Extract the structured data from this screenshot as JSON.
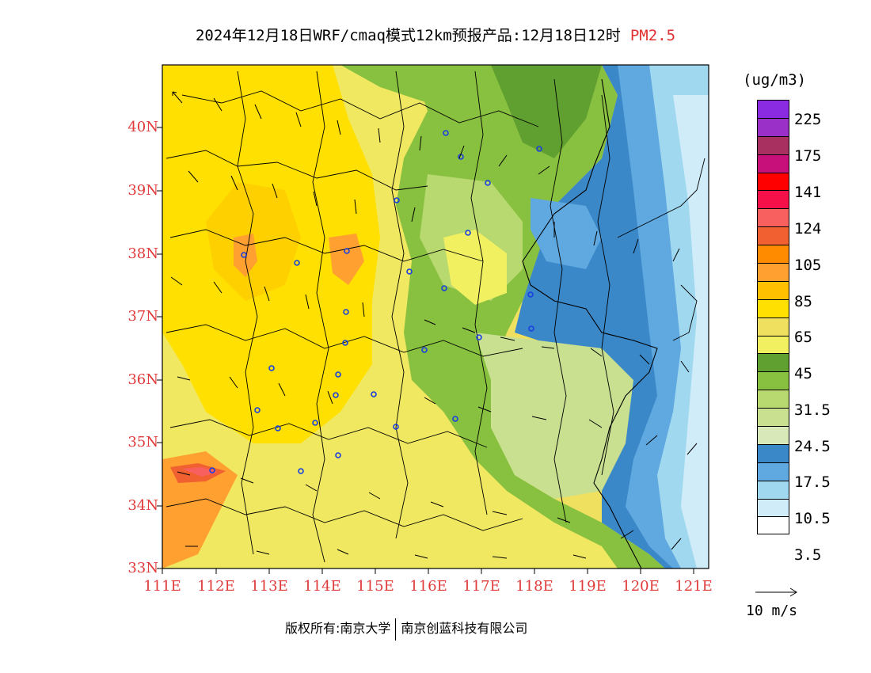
{
  "title": {
    "text": "2024年12月18日WRF/cmaq模式12km预报产品:12月18日12时",
    "pollutant": "PM2.5",
    "pollutant_color": "#e03030"
  },
  "map": {
    "lat_labels": [
      "40N",
      "39N",
      "38N",
      "37N",
      "36N",
      "35N",
      "34N",
      "33N"
    ],
    "lon_labels": [
      "111E",
      "112E",
      "113E",
      "114E",
      "115E",
      "116E",
      "117E",
      "118E",
      "119E",
      "120E",
      "121E"
    ],
    "label_color": "#e03a3a",
    "lat_range": [
      33,
      41
    ],
    "lon_range": [
      111,
      121.3
    ]
  },
  "colorbar": {
    "unit": "(ug/m3)",
    "colors": [
      "#8a2be2",
      "#9b30c8",
      "#a83060",
      "#c8107a",
      "#ff0000",
      "#f5104a",
      "#f86060",
      "#f06030",
      "#ff8c00",
      "#ffa030",
      "#ffc000",
      "#ffe000",
      "#f0e060",
      "#f0f060",
      "#60a030",
      "#88c040",
      "#b8d870",
      "#c8e090",
      "#d8e8b8",
      "#3a88c8",
      "#60a8e0",
      "#a0d8f0",
      "#d0ecf8",
      "#ffffff"
    ],
    "labels": [
      "225",
      "175",
      "141",
      "124",
      "105",
      "85",
      "65",
      "45",
      "31.5",
      "24.5",
      "17.5",
      "10.5",
      "3.5"
    ]
  },
  "wind_key": {
    "label": "10 m/s"
  },
  "copyright": {
    "owner": "版权所有:南京大学",
    "company": "南京创蓝科技有限公司"
  }
}
